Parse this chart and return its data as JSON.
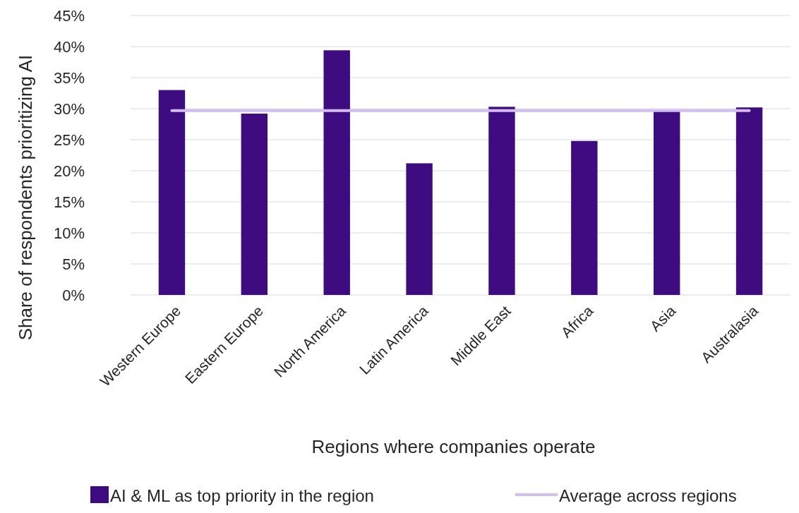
{
  "chart_data": {
    "type": "bar",
    "xlabel": "Regions where companies operate",
    "ylabel": "Share of respondents prioritizing AI",
    "categories": [
      "Western Europe",
      "Eastern Europe",
      "North America",
      "Latin America",
      "Middle East",
      "Africa",
      "Asia",
      "Australasia"
    ],
    "series": [
      {
        "name": "AI & ML as top priority in the region",
        "color": "#3f0b80",
        "values": [
          33,
          29.2,
          39.4,
          21.2,
          30.3,
          24.8,
          29.7,
          30.2
        ]
      },
      {
        "name": "Average across regions",
        "type": "line",
        "color": "#d2bdf0",
        "values": [
          29.7,
          29.7,
          29.7,
          29.7,
          29.7,
          29.7,
          29.7,
          29.7
        ]
      }
    ],
    "ylim": [
      0,
      45
    ],
    "yticks": [
      {
        "value": 0,
        "label": "0%"
      },
      {
        "value": 5,
        "label": "5%"
      },
      {
        "value": 10,
        "label": "10%"
      },
      {
        "value": 15,
        "label": "15%"
      },
      {
        "value": 20,
        "label": "20%"
      },
      {
        "value": 25,
        "label": "25%"
      },
      {
        "value": 30,
        "label": "30%"
      },
      {
        "value": 35,
        "label": "35%"
      },
      {
        "value": 40,
        "label": "40%"
      },
      {
        "value": 45,
        "label": "45%"
      }
    ],
    "grid": "y",
    "legend": "bottom"
  }
}
